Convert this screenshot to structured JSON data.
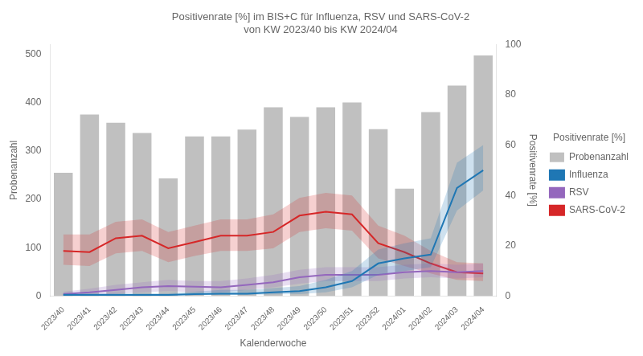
{
  "chart_data": {
    "type": "bar",
    "title": "Positivenrate [%] im BIS+C für Influenza, RSV und SARS-CoV-2\nvon KW 2023/40 bis KW 2024/04",
    "xlabel": "Kalenderwoche",
    "ylabel": "Probenanzahl",
    "y2label": "Positivenrate [%]",
    "categories": [
      "2023/40",
      "2023/41",
      "2023/42",
      "2023/43",
      "2023/44",
      "2023/45",
      "2023/46",
      "2023/47",
      "2023/48",
      "2023/49",
      "2023/50",
      "2023/51",
      "2023/52",
      "2024/01",
      "2024/02",
      "2024/03",
      "2024/04"
    ],
    "series": [
      {
        "name": "Probenanzahl",
        "type": "bar",
        "color": "#c0c0c0",
        "values": [
          255,
          375,
          358,
          337,
          243,
          330,
          330,
          344,
          390,
          370,
          390,
          400,
          345,
          222,
          380,
          435,
          497
        ]
      },
      {
        "name": "Influenza",
        "type": "line",
        "axis": "y2",
        "color": "#1f77b4",
        "values": [
          0.5,
          0.5,
          0.5,
          0.5,
          0.5,
          0.8,
          1.0,
          1.0,
          1.5,
          2.0,
          3.5,
          6.0,
          13.0,
          15.0,
          16.5,
          43.0,
          50.0
        ],
        "low": [
          0.2,
          0.2,
          0.2,
          0.2,
          0.2,
          0.4,
          0.5,
          0.5,
          0.7,
          0.8,
          1.5,
          3.5,
          8.5,
          10.0,
          11.5,
          34.0,
          42.0
        ],
        "high": [
          1.2,
          1.2,
          1.2,
          1.2,
          1.2,
          1.8,
          2.5,
          2.5,
          3.2,
          4.0,
          6.5,
          10.0,
          18.5,
          21.0,
          23.0,
          53.0,
          60.0
        ]
      },
      {
        "name": "RSV",
        "type": "line",
        "axis": "y2",
        "color": "#9467bd",
        "values": [
          0.8,
          1.5,
          2.5,
          3.5,
          4.0,
          3.8,
          3.5,
          4.5,
          5.5,
          7.5,
          8.5,
          8.5,
          8.5,
          9.5,
          10.0,
          9.5,
          10.0
        ],
        "low": [
          0.2,
          0.5,
          1.0,
          1.5,
          2.0,
          1.5,
          1.5,
          2.5,
          3.5,
          5.0,
          6.0,
          6.0,
          6.0,
          7.0,
          7.5,
          7.0,
          7.5
        ],
        "high": [
          1.8,
          3.0,
          4.5,
          5.5,
          6.5,
          6.0,
          6.0,
          7.0,
          8.5,
          10.5,
          11.5,
          11.5,
          11.5,
          12.5,
          13.0,
          12.5,
          13.0
        ]
      },
      {
        "name": "SARS-CoV-2",
        "type": "line",
        "axis": "y2",
        "color": "#d62728",
        "values": [
          18.0,
          17.5,
          23.0,
          24.0,
          19.0,
          21.5,
          24.0,
          24.0,
          25.5,
          32.0,
          33.5,
          32.5,
          21.0,
          17.5,
          13.0,
          9.5,
          9.0
        ],
        "low": [
          12.5,
          12.0,
          17.0,
          18.0,
          13.5,
          16.0,
          18.0,
          18.0,
          19.0,
          25.5,
          27.0,
          26.0,
          15.0,
          12.0,
          9.0,
          6.5,
          6.0
        ],
        "high": [
          24.5,
          24.5,
          29.5,
          30.5,
          25.5,
          28.0,
          30.5,
          30.5,
          32.5,
          39.0,
          41.0,
          40.0,
          28.0,
          24.0,
          18.0,
          13.5,
          13.0
        ]
      }
    ],
    "ylim": [
      0,
      520
    ],
    "yticks": [
      0,
      100,
      200,
      300,
      400,
      500
    ],
    "y2lim": [
      0,
      100
    ],
    "y2ticks": [
      0,
      20,
      40,
      60,
      80,
      100
    ],
    "grid": false,
    "legend": "right"
  }
}
